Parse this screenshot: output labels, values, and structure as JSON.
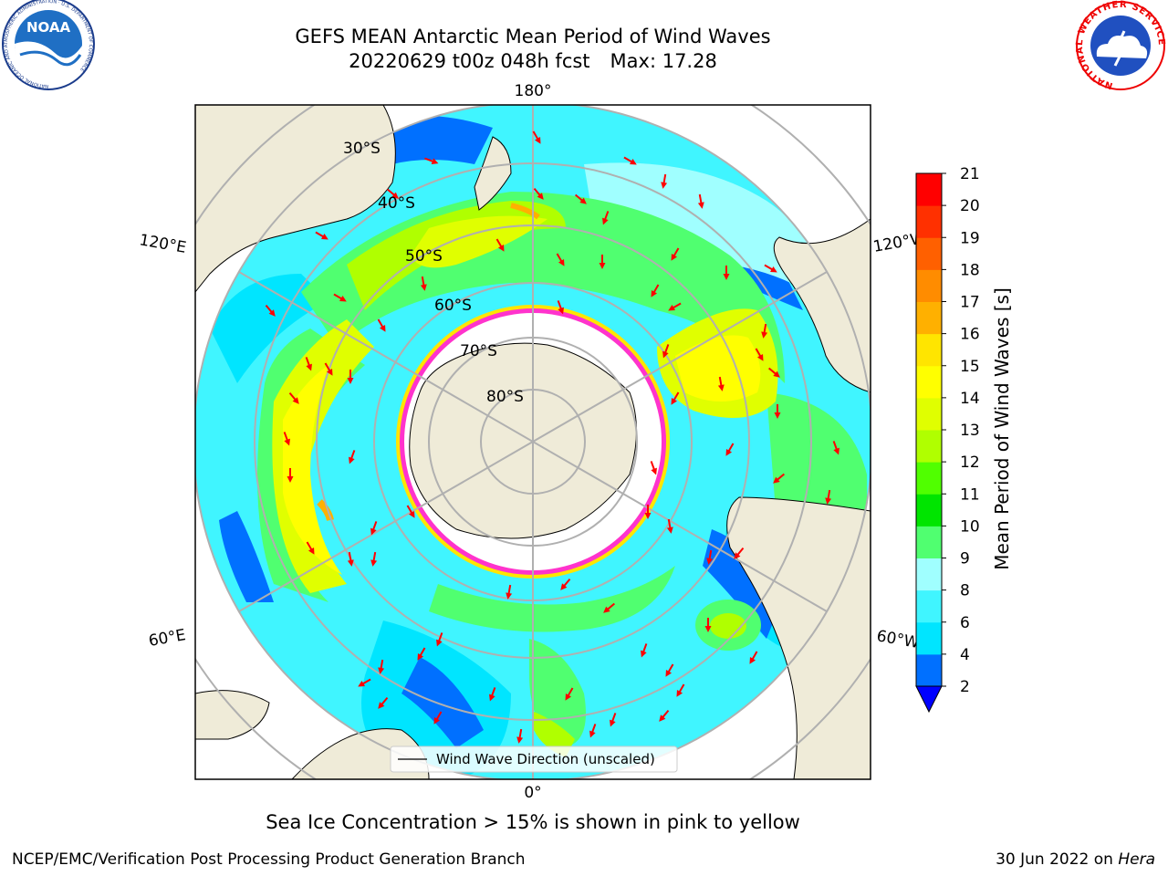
{
  "title_line1": "GEFS MEAN Antarctic Mean Period of Wind Waves",
  "title_line2": "20220629 t00z 048h fcst",
  "title_max": "Max: 17.28",
  "logos": {
    "noaa_text": "NOAA",
    "noaa_ring_text": "NATIONAL OCEANIC AND ATMOSPHERIC ADMINISTRATION · U.S. DEPARTMENT OF COMMERCE",
    "nws_ring_text": "NATIONAL WEATHER SERVICE"
  },
  "map": {
    "projection": "south-polar-stereographic",
    "longitude_labels": {
      "top": "180°",
      "bottom": "0°",
      "upper_left": "120°E",
      "upper_right": "120°W",
      "lower_left": "60°E",
      "lower_right": "60°W"
    },
    "latitude_labels": [
      "30°S",
      "40°S",
      "50°S",
      "60°S",
      "70°S",
      "80°S"
    ],
    "legend_label": "Wind Wave Direction (unscaled)",
    "colors": {
      "land": "#efebd8",
      "grid": "#b0b0b0",
      "arrow": "#ff0000",
      "ice_edge": "#ff33cc"
    }
  },
  "chart_data": {
    "type": "heatmap",
    "variable": "Mean Period of Wind Waves [s]",
    "max": 17.28,
    "colorbar": {
      "label": "Mean Period of Wind Waves [s]",
      "levels": [
        2,
        4,
        6,
        8,
        9,
        10,
        11,
        12,
        13,
        14,
        15,
        16,
        17,
        18,
        19,
        20,
        21
      ],
      "tick_labels": [
        "2",
        "4",
        "6",
        "8",
        "9",
        "10",
        "11",
        "12",
        "13",
        "14",
        "15",
        "16",
        "17",
        "18",
        "19",
        "20",
        "21"
      ],
      "colors": [
        "#0070ff",
        "#00e5ff",
        "#40f5ff",
        "#a0ffff",
        "#50ff70",
        "#00e500",
        "#50ff00",
        "#b0ff00",
        "#e0ff00",
        "#ffff00",
        "#ffe500",
        "#ffb000",
        "#ff8c00",
        "#ff6000",
        "#ff3000",
        "#ff0000"
      ],
      "under_color": "#0000ff",
      "extend": "min"
    }
  },
  "caption": "Sea Ice Concentration > 15% is shown in pink to yellow",
  "footer_left": "NCEP/EMC/Verification Post Processing Product Generation Branch",
  "footer_right_prefix": "30 Jun 2022 on ",
  "footer_right_host": "Hera"
}
